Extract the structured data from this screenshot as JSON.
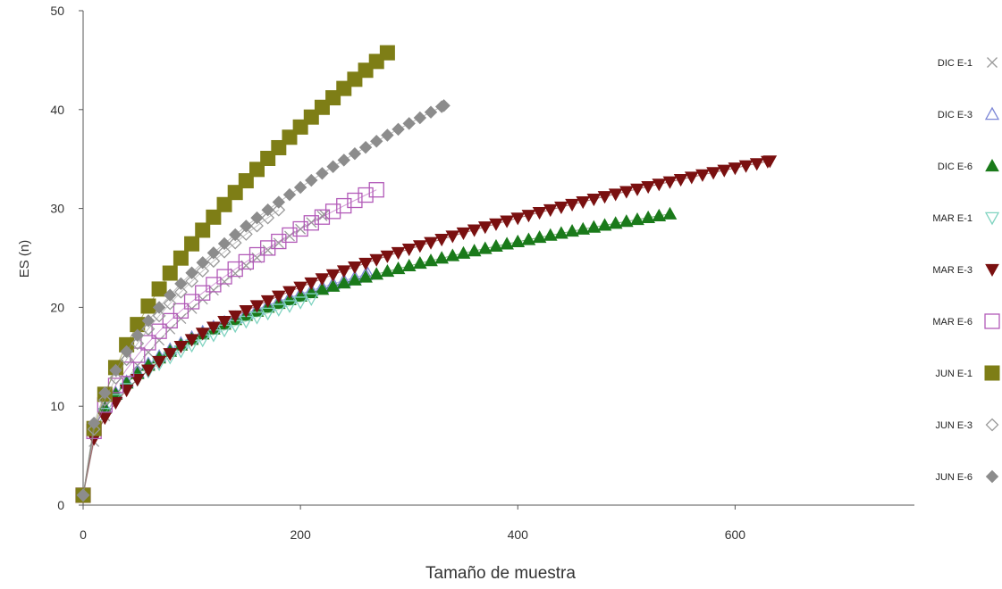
{
  "chart_data": {
    "type": "scatter",
    "title": "",
    "xlabel": "Tamaño de muestra",
    "ylabel": "ES (n)",
    "xlim": [
      0,
      765
    ],
    "ylim": [
      0,
      50
    ],
    "xticks": [
      "0",
      "200",
      "400",
      "600"
    ],
    "yticks": [
      "0",
      "10",
      "20",
      "30",
      "40",
      "50"
    ],
    "grid": false,
    "legend_position": "right",
    "series": [
      {
        "name": "DIC E-1",
        "marker": "x",
        "color": "#9a9a9a",
        "fill": false,
        "a": 2.07,
        "p": 0.491,
        "step": 10,
        "max_n": 222
      },
      {
        "name": "DIC E-3",
        "marker": "triangle-up",
        "color": "#7b86d6",
        "fill": false,
        "a": 3.64,
        "p": 0.334,
        "step": 10,
        "max_n": 262
      },
      {
        "name": "DIC E-6",
        "marker": "triangle-up",
        "color": "#1a7a1a",
        "fill": true,
        "a": 3.6,
        "p": 0.334,
        "step": 10,
        "max_n": 540
      },
      {
        "name": "MAR E-1",
        "marker": "triangle-down",
        "color": "#7fd3c0",
        "fill": false,
        "a": 3.3,
        "p": 0.345,
        "step": 10,
        "max_n": 210
      },
      {
        "name": "MAR E-3",
        "marker": "triangle-down",
        "color": "#7a1010",
        "fill": true,
        "a": 2.69,
        "p": 0.397,
        "step": 10,
        "max_n": 632
      },
      {
        "name": "MAR E-6",
        "marker": "square",
        "color": "#b25ab8",
        "fill": false,
        "a": 2.7,
        "p": 0.441,
        "step": 10,
        "max_n": 270
      },
      {
        "name": "JUN E-1",
        "marker": "square",
        "color": "#7e7e16",
        "fill": true,
        "a": 2.27,
        "p": 0.533,
        "step": 10,
        "max_n": 280
      },
      {
        "name": "JUN E-3",
        "marker": "diamond",
        "color": "#9a9a9a",
        "fill": false,
        "a": 2.6,
        "p": 0.47,
        "step": 10,
        "max_n": 180
      },
      {
        "name": "JUN E-6",
        "marker": "diamond",
        "color": "#8c8c8c",
        "fill": true,
        "a": 2.93,
        "p": 0.452,
        "step": 10,
        "max_n": 332
      }
    ]
  }
}
